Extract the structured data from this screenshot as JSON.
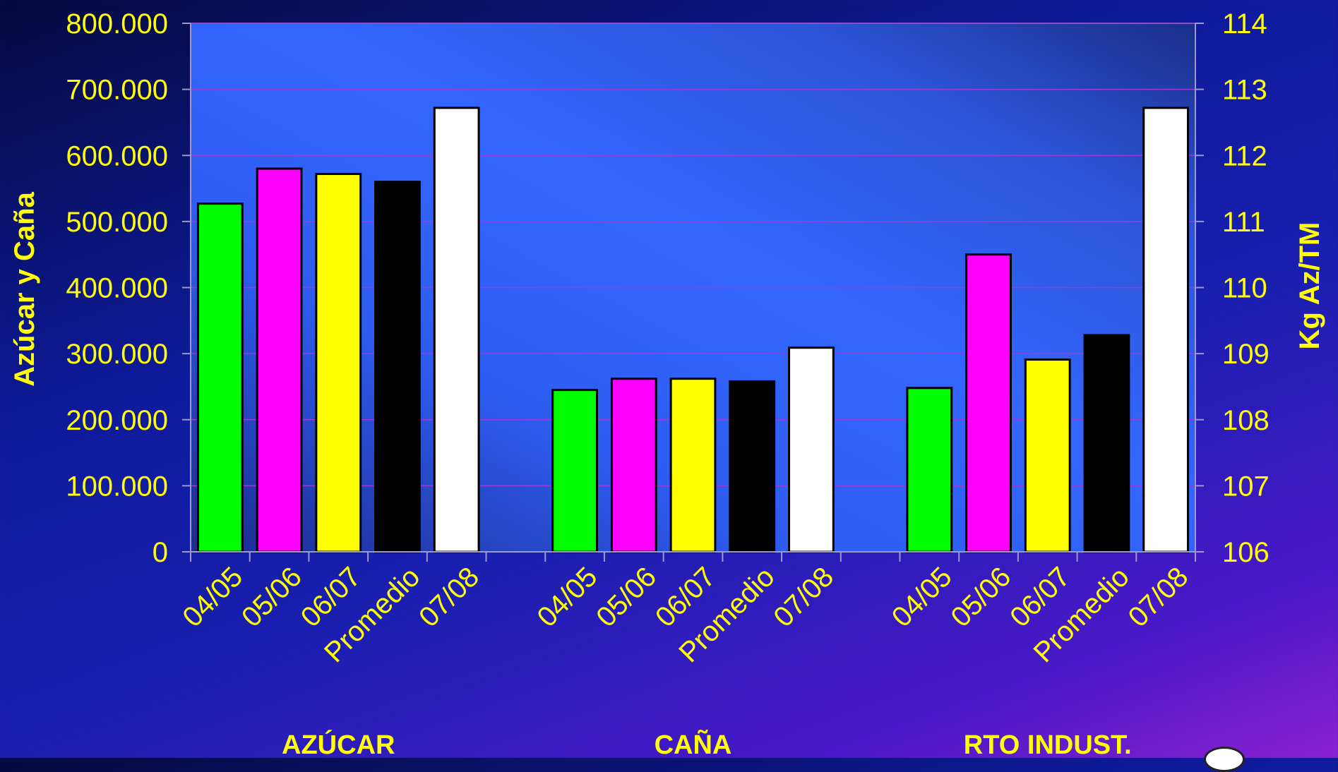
{
  "chart_data": {
    "type": "bar",
    "title": "",
    "ylabel_left": "Azúcar y Caña",
    "ylabel_right": "Kg Az/TM",
    "ylim_left": [
      0,
      800000
    ],
    "ylim_right": [
      106,
      114
    ],
    "left_ticks": [
      "0",
      "100.000",
      "200.000",
      "300.000",
      "400.000",
      "500.000",
      "600.000",
      "700.000",
      "800.000"
    ],
    "right_ticks": [
      "106",
      "107",
      "108",
      "109",
      "110",
      "111",
      "112",
      "113",
      "114"
    ],
    "grid": true,
    "groups": [
      {
        "label": "AZÚCAR",
        "axis": "left",
        "categories": [
          "04/05",
          "05/06",
          "06/07",
          "Promedio",
          "07/08"
        ],
        "values": [
          527000,
          580000,
          572000,
          560000,
          672000
        ]
      },
      {
        "label": "CAÑA",
        "axis": "left",
        "categories": [
          "04/05",
          "05/06",
          "06/07",
          "Promedio",
          "07/08"
        ],
        "values": [
          245000,
          262000,
          262000,
          258000,
          309000
        ]
      },
      {
        "label": "RTO INDUST.",
        "axis": "right",
        "categories": [
          "04/05",
          "05/06",
          "06/07",
          "Promedio",
          "07/08"
        ],
        "values": [
          108.48,
          110.5,
          108.91,
          109.28,
          112.72
        ]
      }
    ],
    "bar_colors": [
      "#00ff00",
      "#ff00ff",
      "#ffff00",
      "#000000",
      "#ffffff"
    ]
  }
}
